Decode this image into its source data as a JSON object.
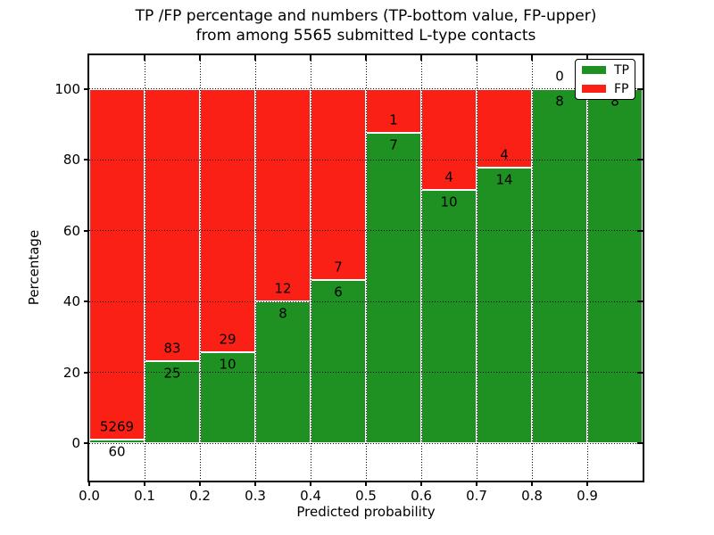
{
  "title": {
    "line1": "TP /FP percentage and numbers (TP-bottom value, FP-upper)",
    "line2": "from among 5565 submitted L-type contacts"
  },
  "axes": {
    "xlabel": "Predicted probability",
    "ylabel": "Percentage",
    "xtick_labels": [
      "0.0",
      "0.1",
      "0.2",
      "0.3",
      "0.4",
      "0.5",
      "0.6",
      "0.7",
      "0.8",
      "0.9"
    ],
    "ytick_labels": [
      "0",
      "20",
      "40",
      "60",
      "80",
      "100"
    ]
  },
  "legend": {
    "position": "upper right",
    "items": [
      {
        "label": "TP",
        "swatch": "tp-green-swatch"
      },
      {
        "label": "FP",
        "swatch": "fp-red-swatch"
      }
    ]
  },
  "colors": {
    "tp": "#1e9122",
    "fp": "#fa2015",
    "bar_edge": "#ffffff",
    "grid": "#000000",
    "text": "#000000",
    "background": "#ffffff"
  },
  "chart_data": {
    "type": "bar",
    "stacked": true,
    "normalized": "each bin scaled to 100%",
    "title": "TP /FP percentage and numbers (TP-bottom value, FP-upper) from among 5565 submitted L-type contacts",
    "xlabel": "Predicted probability",
    "ylabel": "Percentage",
    "total_contacts": 5565,
    "x_bin_edges": [
      0.0,
      0.1,
      0.2,
      0.3,
      0.4,
      0.5,
      0.6,
      0.7,
      0.8,
      0.9,
      1.0
    ],
    "categories": [
      "0.0-0.1",
      "0.1-0.2",
      "0.2-0.3",
      "0.3-0.4",
      "0.4-0.5",
      "0.5-0.6",
      "0.6-0.7",
      "0.7-0.8",
      "0.8-0.9",
      "0.9-1.0"
    ],
    "series": [
      {
        "name": "TP",
        "counts": [
          60,
          25,
          10,
          8,
          6,
          7,
          10,
          14,
          8,
          8
        ],
        "percent": [
          1.13,
          23.15,
          25.64,
          40.0,
          46.15,
          87.5,
          71.43,
          77.78,
          100.0,
          100.0
        ]
      },
      {
        "name": "FP",
        "counts": [
          5269,
          83,
          29,
          12,
          7,
          1,
          4,
          4,
          0,
          0
        ],
        "percent": [
          98.87,
          76.85,
          74.36,
          60.0,
          53.85,
          12.5,
          28.57,
          22.22,
          0.0,
          0.0
        ]
      }
    ],
    "xlim": [
      0.0,
      1.0
    ],
    "ylim": [
      0,
      100
    ],
    "ylim_display": [
      -10.5,
      109.5
    ],
    "xticks": [
      0.0,
      0.1,
      0.2,
      0.3,
      0.4,
      0.5,
      0.6,
      0.7,
      0.8,
      0.9
    ],
    "yticks": [
      0,
      20,
      40,
      60,
      80,
      100
    ],
    "grid": true,
    "grid_style": "dotted",
    "legend_position": "upper right"
  }
}
